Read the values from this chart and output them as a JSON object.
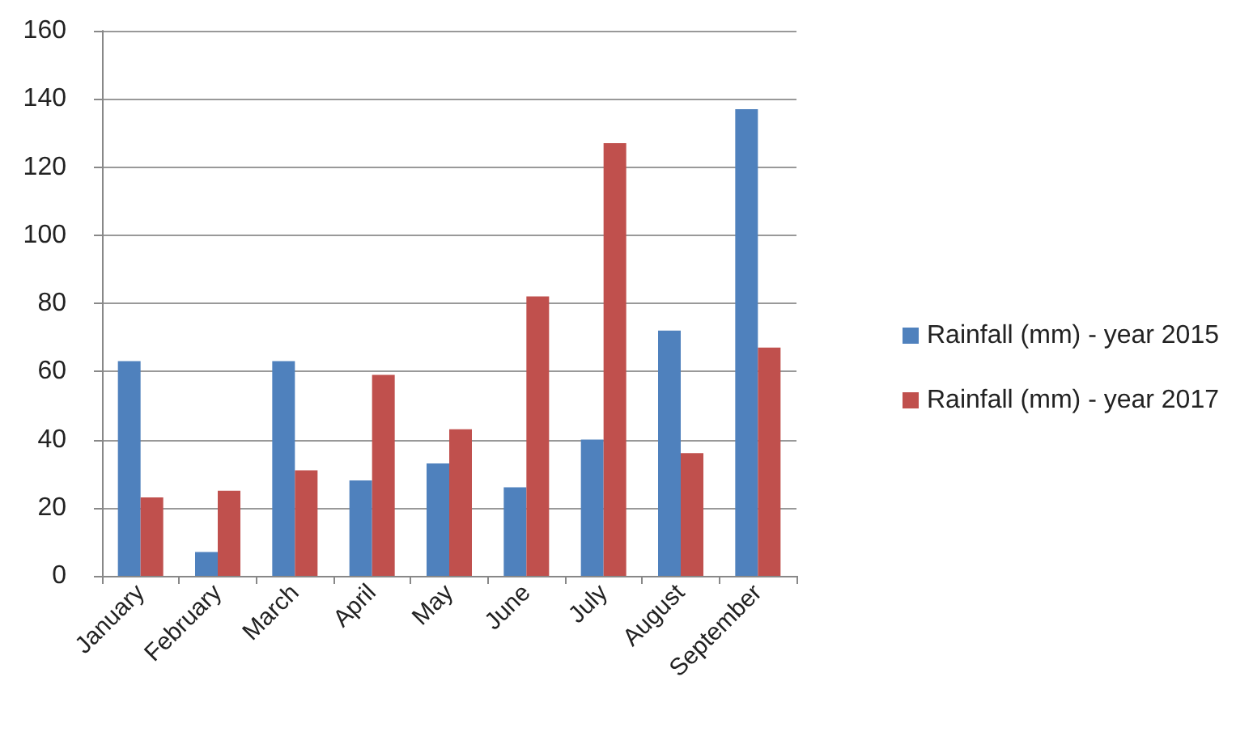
{
  "chart_data": {
    "type": "bar",
    "categories": [
      "January",
      "February",
      "March",
      "April",
      "May",
      "June",
      "July",
      "August",
      "September"
    ],
    "series": [
      {
        "name": "Rainfall (mm) - year 2015",
        "color": "#4f81bd",
        "values": [
          63,
          7,
          63,
          28,
          33,
          26,
          40,
          72,
          137
        ]
      },
      {
        "name": "Rainfall (mm) - year 2017",
        "color": "#c0504d",
        "values": [
          23,
          25,
          31,
          59,
          43,
          82,
          127,
          36,
          67
        ]
      }
    ],
    "ylim": [
      0,
      160
    ],
    "yticks": [
      0,
      20,
      40,
      60,
      80,
      100,
      120,
      140,
      160
    ],
    "grid": "y",
    "legend": "right"
  }
}
